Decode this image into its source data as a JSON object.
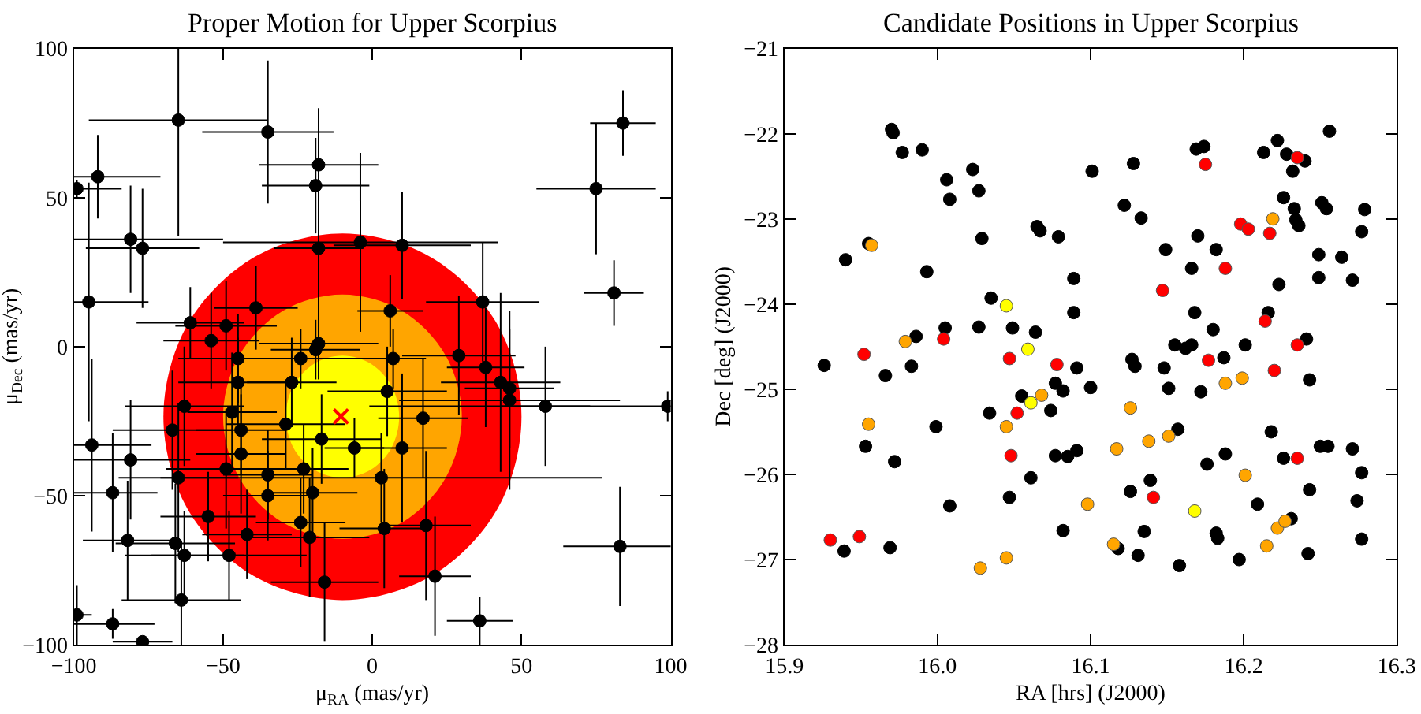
{
  "chart_data": [
    {
      "type": "scatter",
      "title": "Proper Motion for Upper Scorpius",
      "xlabel": "μ$_{RA}$ (mas/yr)",
      "ylabel": "μ$_{Dec}$ (mas/yr)",
      "xlim": [
        -100,
        100
      ],
      "ylim": [
        -100,
        100
      ],
      "xticks": [
        -100,
        -50,
        0,
        50,
        100
      ],
      "yticks": [
        -100,
        -50,
        0,
        50,
        100
      ],
      "grid": false,
      "legend": false,
      "series": [
        {
          "type": "area",
          "color": "#ff0000",
          "x": [
            50,
            42,
            20,
            -10,
            -40,
            -62,
            -70,
            -62,
            -40,
            -10,
            20,
            42,
            50
          ],
          "values": [
            -23.5,
            7.3,
            29.8,
            38,
            29.8,
            7.3,
            -23.5,
            -54.3,
            -76.8,
            -85,
            -76.8,
            -54.3,
            -23.5
          ]
        },
        {
          "type": "area",
          "color": "#ffa500",
          "x": [
            30,
            24.6,
            10,
            -10,
            -30,
            -44.6,
            -50,
            -44.6,
            -30,
            -10,
            10,
            24.6,
            30
          ],
          "values": [
            -23.5,
            -3,
            12,
            17.5,
            12,
            -3,
            -23.5,
            -44,
            -59,
            -64.5,
            -59,
            -44,
            -23.5
          ]
        },
        {
          "type": "area",
          "color": "#ffff00",
          "x": [
            9,
            6.5,
            -0.5,
            -10,
            -19.5,
            -26.5,
            -29,
            -26.5,
            -19.5,
            -10,
            -0.5,
            6.5,
            9
          ],
          "values": [
            -23.5,
            -13.3,
            -5.7,
            -3,
            -5.7,
            -13.3,
            -23.5,
            -33.8,
            -41.3,
            -44,
            -41.3,
            -33.8,
            -23.5
          ]
        },
        {
          "type": "scatter",
          "marker": "circle",
          "color": "#000000",
          "x": [
            -99,
            -92,
            -95,
            -81,
            -77,
            -65,
            -35,
            -18,
            -19,
            -18,
            -4,
            10,
            75,
            84,
            81,
            37,
            6,
            -39,
            -61,
            -49,
            -54,
            -18,
            -19,
            -24,
            -45,
            7,
            29,
            38,
            43,
            46,
            46,
            -45,
            -27,
            5,
            -63,
            -47,
            99,
            58,
            17,
            -67,
            -44,
            -29,
            -17,
            -6,
            10,
            -94,
            -81,
            -44,
            -65,
            -49,
            -35,
            -23,
            3,
            -35,
            -20,
            -87,
            -55,
            -24,
            4,
            18,
            -82,
            -66,
            -42,
            -21,
            -63,
            -48,
            83,
            -16,
            21,
            -64,
            -99,
            -87,
            36,
            -77
          ],
          "values": [
            53,
            57,
            15,
            36,
            33,
            76,
            72,
            61,
            54,
            33,
            35,
            34,
            53,
            75,
            18,
            15,
            12,
            13,
            8,
            7,
            2,
            1,
            -1,
            -4,
            -4,
            -4,
            -3,
            -7,
            -12,
            -14,
            -18,
            -12,
            -12,
            -15,
            -20,
            -22,
            -20,
            -20,
            -24,
            -28,
            -28,
            -26,
            -31,
            -34,
            -34,
            -33,
            -38,
            -36,
            -44,
            -41,
            -43,
            -41,
            -44,
            -50,
            -49,
            -49,
            -57,
            -59,
            -61,
            -60,
            -65,
            -66,
            -63,
            -64,
            -70,
            -70,
            -67,
            -79,
            -77,
            -85,
            -90,
            -93,
            -92,
            -99
          ],
          "xerrors": [
            15,
            21,
            20,
            31,
            19,
            30,
            22,
            20,
            18,
            15,
            46,
            23,
            20,
            11,
            10,
            19,
            11,
            14,
            18,
            17,
            16,
            20,
            15,
            23,
            20,
            11,
            19,
            13,
            20,
            15,
            37,
            20,
            15,
            20,
            20,
            15,
            100,
            15,
            15,
            20,
            15,
            20,
            20,
            10,
            15,
            20,
            20,
            15,
            20,
            20,
            15,
            15,
            74,
            15,
            15,
            15,
            16,
            15,
            15,
            15,
            15,
            20,
            15,
            20,
            20,
            26,
            19,
            18,
            12,
            20,
            5,
            14,
            11,
            10
          ],
          "errors": [
            3,
            14,
            40,
            18,
            20,
            39,
            24,
            19,
            16,
            21,
            30,
            18,
            22,
            11,
            11,
            20,
            12,
            14,
            12,
            15,
            16,
            12,
            10,
            10,
            15,
            10,
            20,
            20,
            30,
            20,
            30,
            15,
            15,
            15,
            20,
            20,
            5,
            20,
            20,
            20,
            15,
            15,
            15,
            10,
            25,
            29,
            20,
            20,
            25,
            20,
            15,
            15,
            15,
            15,
            15,
            20,
            15,
            15,
            20,
            25,
            20,
            20,
            15,
            20,
            15,
            15,
            20,
            20,
            20,
            20,
            10,
            5,
            8,
            1
          ]
        },
        {
          "type": "scatter",
          "marker": "cross",
          "color": "#ff0000",
          "x": [
            -10.5
          ],
          "values": [
            -23.4
          ]
        }
      ]
    },
    {
      "type": "scatter",
      "title": "Candidate Positions in Upper Scorpius",
      "xlabel": "RA [hrs] (J2000)",
      "ylabel": "Dec [deg] (J2000)",
      "xlim": [
        15.9,
        16.3
      ],
      "ylim": [
        -28,
        -21
      ],
      "xticks": [
        15.9,
        {
          "value": 16.0,
          "label": "16.0"
        },
        16.1,
        16.2,
        16.3
      ],
      "yticks": [
        -28,
        -27,
        -26,
        -25,
        -24,
        -23,
        -22,
        -21
      ],
      "grid": false,
      "legend": false,
      "marker": "circle",
      "series": [
        {
          "color": "#000000",
          "x": [
            15.94,
            15.97,
            15.971,
            15.977,
            15.99,
            16.006,
            16.008,
            16.023,
            16.027,
            15.955,
            15.993,
            16.029,
            16.035,
            16.065,
            16.067,
            16.079,
            16.089,
            16.089,
            16.101,
            16.122,
            16.128,
            16.133,
            16.149,
            16.166,
            16.17,
            16.168,
            16.169,
            16.174,
            16.182,
            16.18,
            16.213,
            16.222,
            16.228,
            16.232,
            16.24,
            16.226,
            16.233,
            16.234,
            16.236,
            16.251,
            16.254,
            16.256,
            16.279,
            16.277,
            16.249,
            16.264,
            16.249,
            16.271,
            16.223,
            16.216,
            16.005,
            16.027,
            16.049,
            16.064,
            15.986,
            15.926,
            15.966,
            15.983,
            15.953,
            15.972,
            15.999,
            16.008,
            15.939,
            15.969,
            16.034,
            16.055,
            16.077,
            16.082,
            16.074,
            16.091,
            16.1,
            16.061,
            16.047,
            16.077,
            16.085,
            16.091,
            16.082,
            16.127,
            16.129,
            16.148,
            16.151,
            16.155,
            16.162,
            16.166,
            16.172,
            16.187,
            16.201,
            16.157,
            16.176,
            16.188,
            16.126,
            16.139,
            16.118,
            16.131,
            16.135,
            16.158,
            16.182,
            16.183,
            16.197,
            16.209,
            16.218,
            16.226,
            16.241,
            16.243,
            16.243,
            16.231,
            16.242,
            16.25,
            16.255,
            16.271,
            16.277,
            16.274,
            16.277
          ],
          "values": [
            -23.48,
            -21.95,
            -21.99,
            -22.22,
            -22.19,
            -22.54,
            -22.77,
            -22.42,
            -22.67,
            -23.29,
            -23.62,
            -23.23,
            -23.93,
            -23.09,
            -23.14,
            -23.21,
            -23.7,
            -24.1,
            -22.44,
            -22.84,
            -22.35,
            -22.99,
            -23.36,
            -23.58,
            -23.2,
            -24.1,
            -22.18,
            -22.15,
            -23.36,
            -24.3,
            -22.22,
            -22.08,
            -22.24,
            -22.44,
            -22.32,
            -22.75,
            -22.88,
            -23.01,
            -23.08,
            -22.81,
            -22.88,
            -21.97,
            -22.89,
            -23.15,
            -23.42,
            -23.45,
            -23.69,
            -23.72,
            -23.77,
            -24.1,
            -24.28,
            -24.27,
            -24.28,
            -24.33,
            -24.38,
            -24.72,
            -24.84,
            -24.73,
            -25.67,
            -25.85,
            -25.44,
            -26.37,
            -26.9,
            -26.86,
            -25.28,
            -25.08,
            -24.93,
            -25.02,
            -25.25,
            -24.75,
            -24.98,
            -26.04,
            -26.27,
            -25.78,
            -25.79,
            -25.72,
            -26.66,
            -24.65,
            -24.73,
            -24.75,
            -24.99,
            -24.48,
            -24.52,
            -24.48,
            -25.03,
            -24.63,
            -24.48,
            -25.47,
            -25.88,
            -25.76,
            -26.2,
            -26.07,
            -26.87,
            -26.95,
            -26.67,
            -27.07,
            -26.69,
            -26.75,
            -27.0,
            -26.35,
            -25.5,
            -25.81,
            -24.41,
            -24.89,
            -26.18,
            -26.52,
            -26.93,
            -25.67,
            -25.67,
            -25.7,
            -25.98,
            -26.31,
            -26.76
          ]
        },
        {
          "color": "#ffa500",
          "x": [
            15.957,
            16.219,
            15.979,
            15.955,
            16.068,
            16.045,
            16.126,
            16.117,
            16.138,
            16.151,
            16.188,
            16.199,
            16.201,
            16.098,
            16.028,
            16.045,
            16.115,
            16.215,
            16.222,
            16.227
          ],
          "values": [
            -23.31,
            -23.0,
            -24.44,
            -25.41,
            -25.07,
            -25.44,
            -25.22,
            -25.7,
            -25.61,
            -25.55,
            -24.93,
            -24.87,
            -26.01,
            -26.35,
            -27.1,
            -26.98,
            -26.82,
            -26.84,
            -26.63,
            -26.55
          ]
        },
        {
          "color": "#ff0000",
          "x": [
            16.175,
            16.235,
            16.198,
            16.203,
            16.217,
            16.188,
            16.147,
            16.214,
            15.952,
            16.004,
            16.047,
            16.078,
            16.052,
            16.048,
            16.177,
            16.22,
            16.235,
            16.235,
            16.141,
            15.93,
            15.949
          ],
          "values": [
            -22.36,
            -22.28,
            -23.06,
            -23.12,
            -23.17,
            -23.58,
            -23.84,
            -24.2,
            -24.59,
            -24.41,
            -24.64,
            -24.71,
            -25.28,
            -25.78,
            -24.66,
            -24.78,
            -24.48,
            -25.81,
            -26.27,
            -26.77,
            -26.73
          ]
        },
        {
          "color": "#ffff00",
          "x": [
            16.045,
            16.059,
            16.061,
            16.168
          ],
          "values": [
            -24.02,
            -24.53,
            -25.16,
            -26.43
          ]
        }
      ]
    }
  ]
}
